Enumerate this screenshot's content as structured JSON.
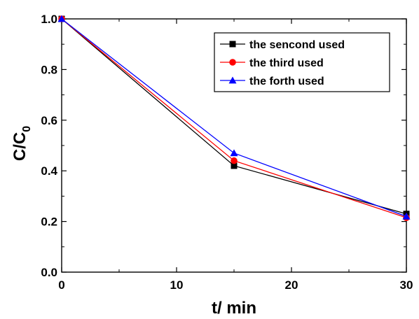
{
  "chart_data": {
    "type": "line",
    "xlabel": "t/ min",
    "ylabel": {
      "main": "C/C",
      "sub": "0"
    },
    "xlim": [
      0,
      30
    ],
    "ylim": [
      0.0,
      1.0
    ],
    "xticks": [
      "0",
      "10",
      "20",
      "30"
    ],
    "yticks": [
      "0.0",
      "0.2",
      "0.4",
      "0.6",
      "0.8",
      "1.0"
    ],
    "legend_position": "top-right",
    "grid": false,
    "series": [
      {
        "name": "the sencond used",
        "color": "#000000",
        "marker": "square",
        "x": [
          0,
          15,
          30
        ],
        "y": [
          1.0,
          0.42,
          0.23
        ]
      },
      {
        "name": "the third used",
        "color": "#ff0000",
        "marker": "circle",
        "x": [
          0,
          15,
          30
        ],
        "y": [
          1.0,
          0.44,
          0.215
        ]
      },
      {
        "name": "the forth used",
        "color": "#0000ff",
        "marker": "triangle",
        "x": [
          0,
          15,
          30
        ],
        "y": [
          1.0,
          0.47,
          0.22
        ]
      }
    ]
  }
}
